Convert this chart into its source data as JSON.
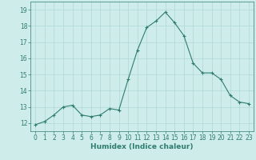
{
  "x": [
    0,
    1,
    2,
    3,
    4,
    5,
    6,
    7,
    8,
    9,
    10,
    11,
    12,
    13,
    14,
    15,
    16,
    17,
    18,
    19,
    20,
    21,
    22,
    23
  ],
  "y": [
    11.9,
    12.1,
    12.5,
    13.0,
    13.1,
    12.5,
    12.4,
    12.5,
    12.9,
    12.8,
    14.7,
    16.5,
    17.9,
    18.3,
    18.85,
    18.2,
    17.4,
    15.7,
    15.1,
    15.1,
    14.7,
    13.7,
    13.3,
    13.2
  ],
  "line_color": "#2e7d6e",
  "marker": "+",
  "marker_size": 3,
  "marker_linewidth": 0.8,
  "line_width": 0.8,
  "bg_color": "#ceecea",
  "grid_color": "#aed8d4",
  "xlabel": "Humidex (Indice chaleur)",
  "ylim": [
    11.5,
    19.5
  ],
  "xlim": [
    -0.5,
    23.5
  ],
  "yticks": [
    12,
    13,
    14,
    15,
    16,
    17,
    18,
    19
  ],
  "xticks": [
    0,
    1,
    2,
    3,
    4,
    5,
    6,
    7,
    8,
    9,
    10,
    11,
    12,
    13,
    14,
    15,
    16,
    17,
    18,
    19,
    20,
    21,
    22,
    23
  ],
  "tick_color": "#2e7d6e",
  "label_color": "#2e7d6e",
  "tick_fontsize": 5.5,
  "xlabel_fontsize": 6.5
}
